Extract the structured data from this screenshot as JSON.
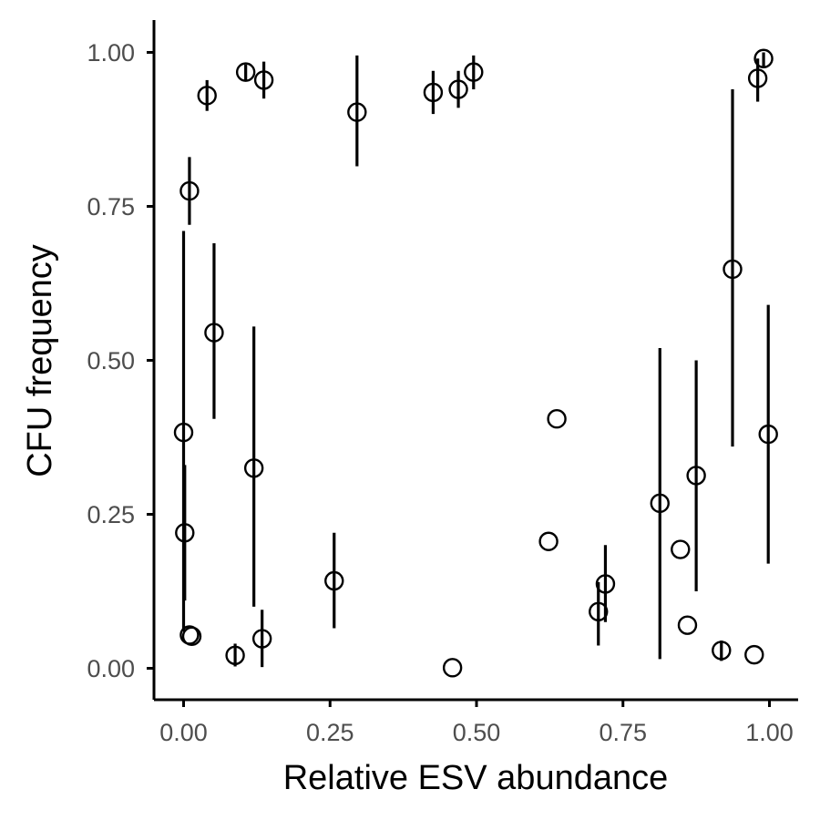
{
  "chart_data": {
    "type": "scatter",
    "title": "",
    "xlabel": "Relative ESV abundance",
    "ylabel": "CFU frequency",
    "xlim": [
      -0.05,
      1.05
    ],
    "ylim": [
      -0.05,
      1.05
    ],
    "x_ticks": [
      {
        "value": 0,
        "label": "0.00"
      },
      {
        "value": 0.25,
        "label": "0.25"
      },
      {
        "value": 0.5,
        "label": "0.50"
      },
      {
        "value": 0.75,
        "label": "0.75"
      },
      {
        "value": 1,
        "label": "1.00"
      }
    ],
    "y_ticks": [
      {
        "value": 0,
        "label": "0.00"
      },
      {
        "value": 0.25,
        "label": "0.25"
      },
      {
        "value": 0.5,
        "label": "0.50"
      },
      {
        "value": 0.75,
        "label": "0.75"
      },
      {
        "value": 1,
        "label": "1.00"
      }
    ],
    "grid": false,
    "legend": "none",
    "colors": {
      "points": "#000000",
      "tick_labels": "#4d4d4d"
    },
    "points": [
      {
        "x": 0.0,
        "y": 0.383,
        "ymin": 0.06,
        "ymax": 0.71
      },
      {
        "x": 0.002,
        "y": 0.22,
        "ymin": 0.11,
        "ymax": 0.33
      },
      {
        "x": 0.01,
        "y": 0.054,
        "ymin": null,
        "ymax": null
      },
      {
        "x": 0.014,
        "y": 0.052,
        "ymin": null,
        "ymax": null
      },
      {
        "x": 0.01,
        "y": 0.775,
        "ymin": 0.72,
        "ymax": 0.83
      },
      {
        "x": 0.04,
        "y": 0.93,
        "ymin": 0.905,
        "ymax": 0.955
      },
      {
        "x": 0.052,
        "y": 0.545,
        "ymin": 0.405,
        "ymax": 0.69
      },
      {
        "x": 0.088,
        "y": 0.021,
        "ymin": 0.003,
        "ymax": 0.04
      },
      {
        "x": 0.106,
        "y": 0.968,
        "ymin": 0.955,
        "ymax": 0.98
      },
      {
        "x": 0.12,
        "y": 0.325,
        "ymin": 0.1,
        "ymax": 0.555
      },
      {
        "x": 0.134,
        "y": 0.048,
        "ymin": 0.002,
        "ymax": 0.095
      },
      {
        "x": 0.137,
        "y": 0.955,
        "ymin": 0.925,
        "ymax": 0.985
      },
      {
        "x": 0.257,
        "y": 0.142,
        "ymin": 0.065,
        "ymax": 0.22
      },
      {
        "x": 0.296,
        "y": 0.903,
        "ymin": 0.815,
        "ymax": 0.995
      },
      {
        "x": 0.426,
        "y": 0.935,
        "ymin": 0.9,
        "ymax": 0.97
      },
      {
        "x": 0.459,
        "y": 0.001,
        "ymin": null,
        "ymax": null
      },
      {
        "x": 0.469,
        "y": 0.94,
        "ymin": 0.91,
        "ymax": 0.97
      },
      {
        "x": 0.495,
        "y": 0.968,
        "ymin": 0.94,
        "ymax": 0.995
      },
      {
        "x": 0.623,
        "y": 0.206,
        "ymin": null,
        "ymax": null
      },
      {
        "x": 0.637,
        "y": 0.405,
        "ymin": null,
        "ymax": null
      },
      {
        "x": 0.708,
        "y": 0.092,
        "ymin": 0.037,
        "ymax": 0.14
      },
      {
        "x": 0.72,
        "y": 0.137,
        "ymin": 0.075,
        "ymax": 0.2
      },
      {
        "x": 0.813,
        "y": 0.268,
        "ymin": 0.015,
        "ymax": 0.52
      },
      {
        "x": 0.848,
        "y": 0.193,
        "ymin": null,
        "ymax": null
      },
      {
        "x": 0.86,
        "y": 0.07,
        "ymin": null,
        "ymax": null
      },
      {
        "x": 0.875,
        "y": 0.313,
        "ymin": 0.125,
        "ymax": 0.5
      },
      {
        "x": 0.918,
        "y": 0.029,
        "ymin": 0.012,
        "ymax": 0.045
      },
      {
        "x": 0.937,
        "y": 0.648,
        "ymin": 0.36,
        "ymax": 0.94
      },
      {
        "x": 0.974,
        "y": 0.022,
        "ymin": null,
        "ymax": null
      },
      {
        "x": 0.98,
        "y": 0.958,
        "ymin": 0.92,
        "ymax": 0.99
      },
      {
        "x": 0.99,
        "y": 0.99,
        "ymin": 0.975,
        "ymax": 1.0
      },
      {
        "x": 0.998,
        "y": 0.38,
        "ymin": 0.17,
        "ymax": 0.59
      }
    ]
  }
}
